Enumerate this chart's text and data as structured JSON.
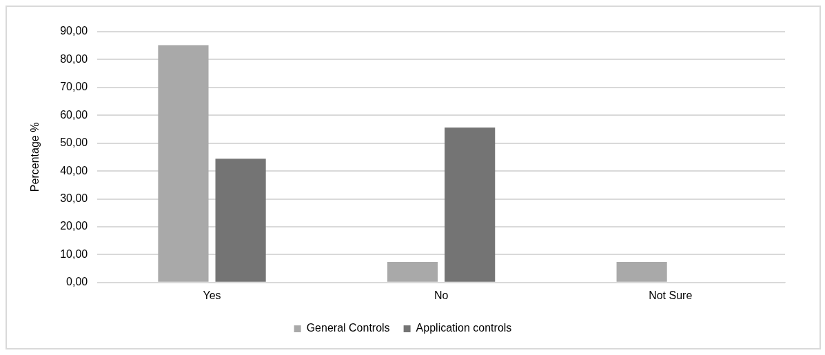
{
  "chart_data": {
    "type": "bar",
    "ylabel": "Percentage %",
    "categories": [
      "Yes",
      "No",
      "Not Sure"
    ],
    "series": [
      {
        "name": "General Controls",
        "color": "#a9a9a9",
        "values": [
          85.2,
          7.4,
          7.4
        ]
      },
      {
        "name": "Application controls",
        "color": "#747474",
        "values": [
          44.4,
          55.6,
          0
        ]
      }
    ],
    "ylim": [
      0,
      90
    ],
    "yticks": [
      {
        "value": 0,
        "label": "0,00"
      },
      {
        "value": 10,
        "label": "10,00"
      },
      {
        "value": 20,
        "label": "20,00"
      },
      {
        "value": 30,
        "label": "30,00"
      },
      {
        "value": 40,
        "label": "40,00"
      },
      {
        "value": 50,
        "label": "50,00"
      },
      {
        "value": 60,
        "label": "60,00"
      },
      {
        "value": 70,
        "label": "70,00"
      },
      {
        "value": 80,
        "label": "80,00"
      },
      {
        "value": 90,
        "label": "90,00"
      }
    ],
    "grid": "y",
    "legend": "bottom"
  }
}
